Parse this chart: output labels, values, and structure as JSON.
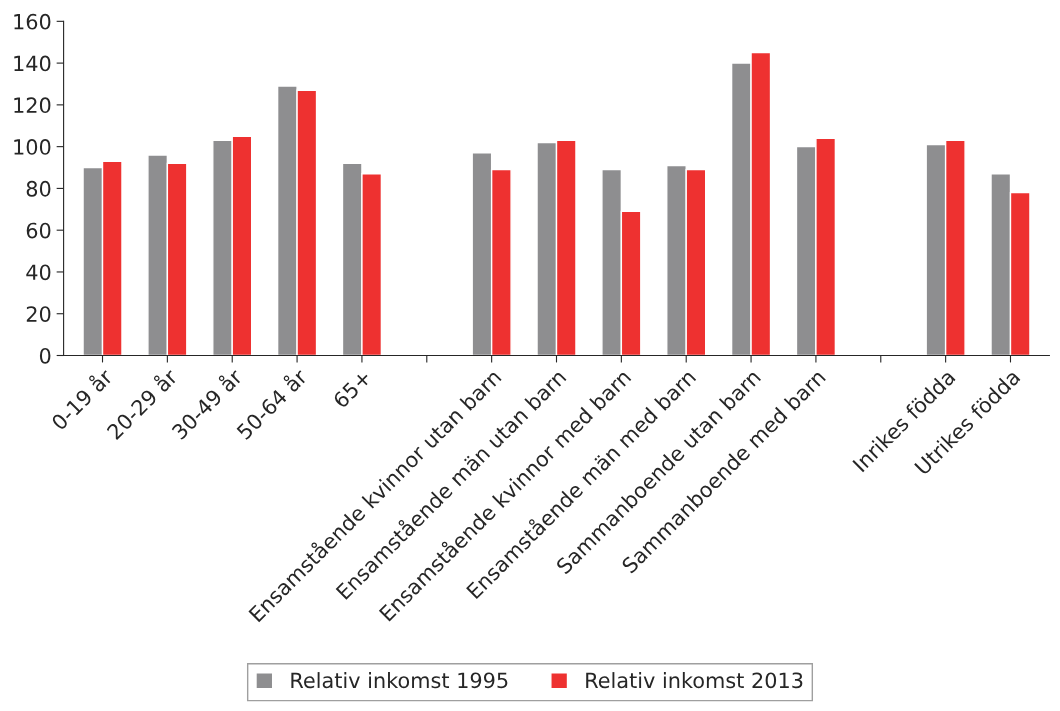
{
  "chart_data": {
    "type": "bar",
    "categories": [
      "0-19 år",
      "20-29 år",
      "30-49 år",
      "50-64 år",
      "65+",
      null,
      "Ensamstående kvinnor utan barn",
      "Ensamstående män utan barn",
      "Ensamstående kvinnor med barn",
      "Ensamstående män med barn",
      "Sammanboende utan barn",
      "Sammanboende med barn",
      null,
      "Inrikes födda",
      "Utrikes födda"
    ],
    "series": [
      {
        "name": "Relativ inkomst 1995",
        "color": "#8e8e90",
        "values": [
          90,
          96,
          103,
          129,
          92,
          null,
          97,
          102,
          89,
          91,
          140,
          100,
          null,
          101,
          87
        ]
      },
      {
        "name": "Relativ inkomst 2013",
        "color": "#ee3130",
        "values": [
          93,
          92,
          105,
          127,
          87,
          null,
          89,
          103,
          69,
          89,
          145,
          104,
          null,
          103,
          78
        ]
      }
    ],
    "ylim": [
      0,
      160
    ],
    "yticks": [
      0,
      20,
      40,
      60,
      80,
      100,
      120,
      140,
      160
    ],
    "grid": false,
    "legend": "bottom"
  }
}
